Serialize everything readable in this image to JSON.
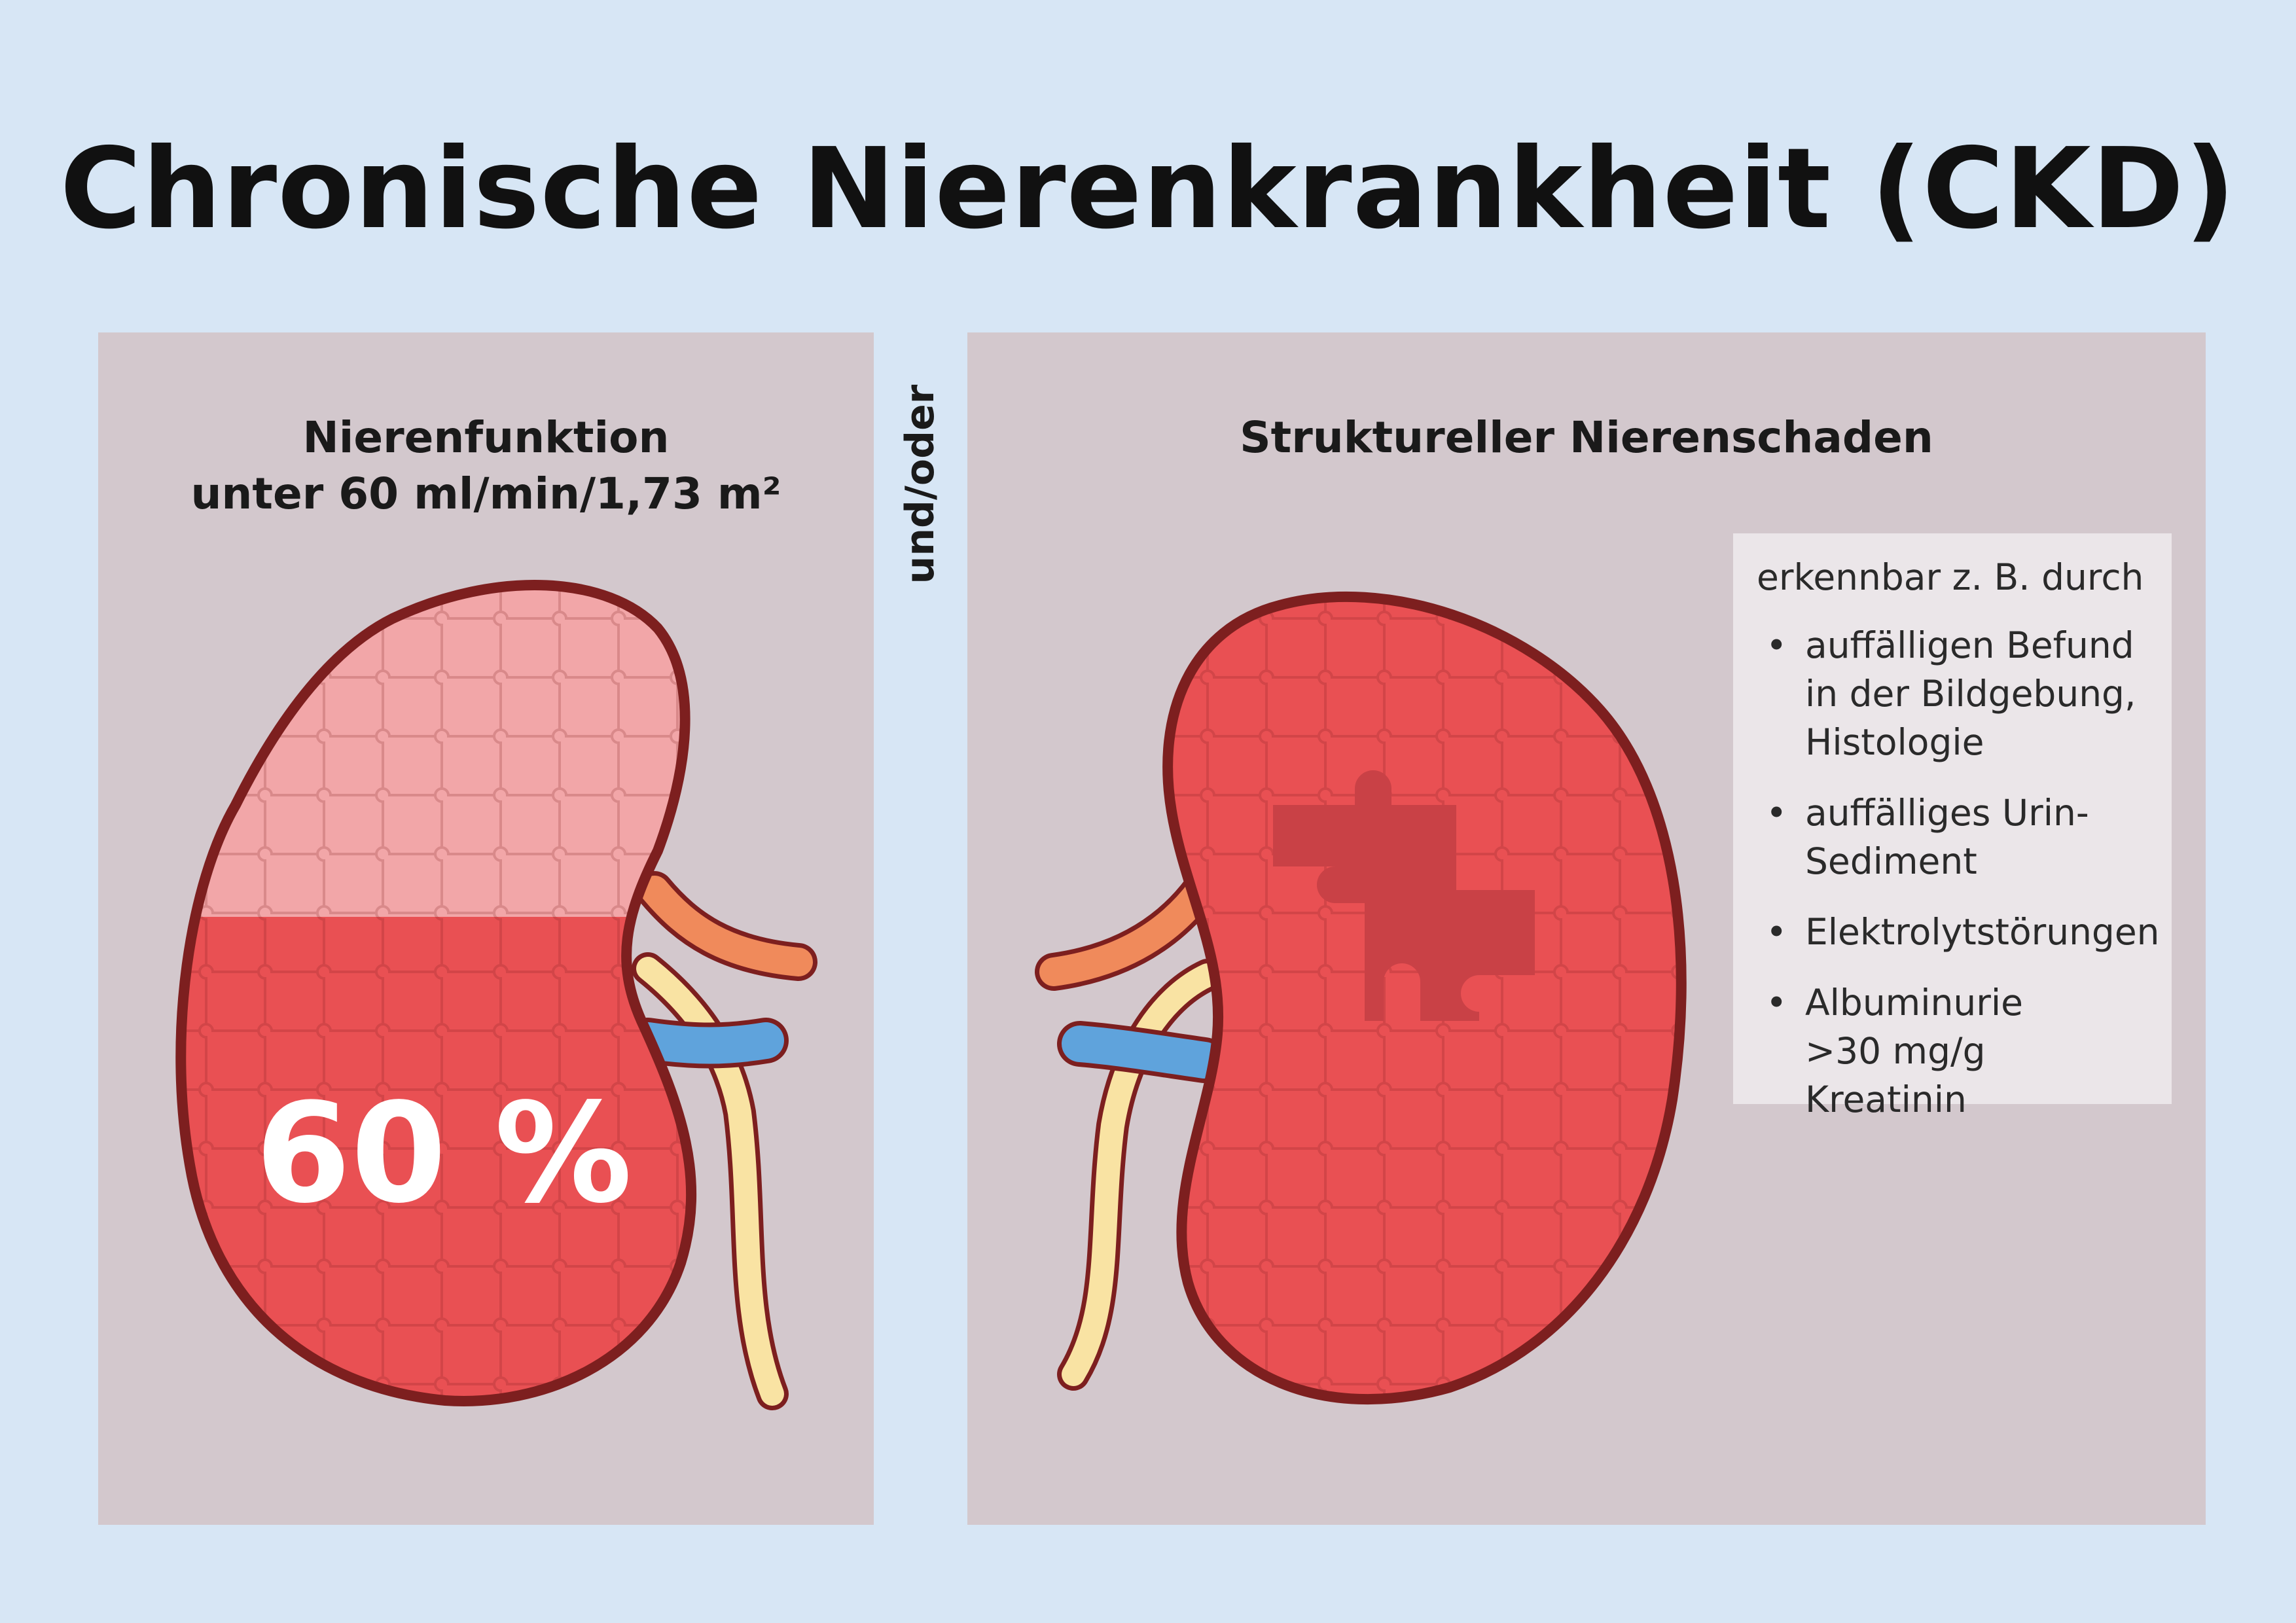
{
  "title": "Chronische Nierenkrankheit (CKD)",
  "connector": "und/oder",
  "left_panel": {
    "heading_line1": "Nierenfunktion",
    "heading_line2": "unter 60 ml/min/1,73 m²",
    "percent_label": "60 %",
    "remaining_function_fraction": 0.6
  },
  "right_panel": {
    "heading": "Struktureller Nierenschaden",
    "infobox": {
      "intro": "erkennbar z. B. durch",
      "items": [
        {
          "line1": "auffälligen Befund",
          "line2": "in der Bildgebung,",
          "line3": "Histologie"
        },
        {
          "line1": "auffälliges Urin-",
          "line2": "Sediment"
        },
        {
          "line1": "Elektrolytstörungen"
        },
        {
          "line1": "Albuminurie",
          "line2": ">30 mg/g Kreatinin"
        }
      ]
    }
  },
  "colors": {
    "background": "#d7e6f5",
    "panel": "#d3c8cd",
    "kidney_healthy": "#e95053",
    "kidney_lost": "#f2a6a8",
    "kidney_outline": "#7d1f1f",
    "artery": "#f08a5b",
    "vein": "#5fa3dc",
    "ureter": "#f9e3a3",
    "missing_piece": "#c94146"
  },
  "icons": [
    "kidney-left-illustration",
    "kidney-right-illustration",
    "puzzle-pattern",
    "missing-puzzle-piece"
  ]
}
